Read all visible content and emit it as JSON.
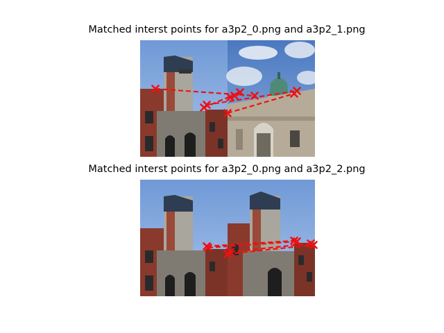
{
  "figure": {
    "titles": [
      "Matched interst points for a3p2_0.png and a3p2_1.png",
      "Matched interst points for a3p2_0.png and a3p2_2.png"
    ],
    "match_color": "#ee1111",
    "images": {
      "a3p2_0": {
        "sky": "#7fa6de",
        "brick": "#8c3a2b",
        "stone": "#a8a59c",
        "roof": "#2c3e55"
      },
      "a3p2_1": {
        "sky": "#5c86c8",
        "cloud": "#e6ecf4",
        "stone": "#b7ad9c",
        "dome": "#4f8a78"
      },
      "a3p2_2": {
        "sky": "#85abe2",
        "brick": "#8c3a2b",
        "stone": "#a8a59c",
        "roof": "#2c3e55"
      }
    }
  },
  "chart_data": [
    {
      "type": "scatter",
      "title": "Matched interst points for a3p2_0.png and a3p2_1.png",
      "description_free": true,
      "xlim": [
        0,
        252
      ],
      "ylim": [
        168,
        0
      ],
      "matches": [
        {
          "x1": 22,
          "y1": 70,
          "x2": 165,
          "y2": 80
        },
        {
          "x1": 92,
          "y1": 97,
          "x2": 144,
          "y2": 75
        },
        {
          "x1": 96,
          "y1": 93,
          "x2": 226,
          "y2": 73
        },
        {
          "x1": 126,
          "y1": 105,
          "x2": 222,
          "y2": 77
        },
        {
          "x1": 130,
          "y1": 82,
          "x2": 136,
          "y2": 80
        }
      ]
    },
    {
      "type": "scatter",
      "title": "Matched interst points for a3p2_0.png and a3p2_2.png",
      "xlim": [
        0,
        252
      ],
      "ylim": [
        168,
        0
      ],
      "matches": [
        {
          "x1": 96,
          "y1": 96,
          "x2": 222,
          "y2": 88
        },
        {
          "x1": 126,
          "y1": 107,
          "x2": 250,
          "y2": 94
        },
        {
          "x1": 98,
          "y1": 98,
          "x2": 226,
          "y2": 89
        },
        {
          "x1": 130,
          "y1": 104,
          "x2": 246,
          "y2": 92
        }
      ]
    }
  ]
}
